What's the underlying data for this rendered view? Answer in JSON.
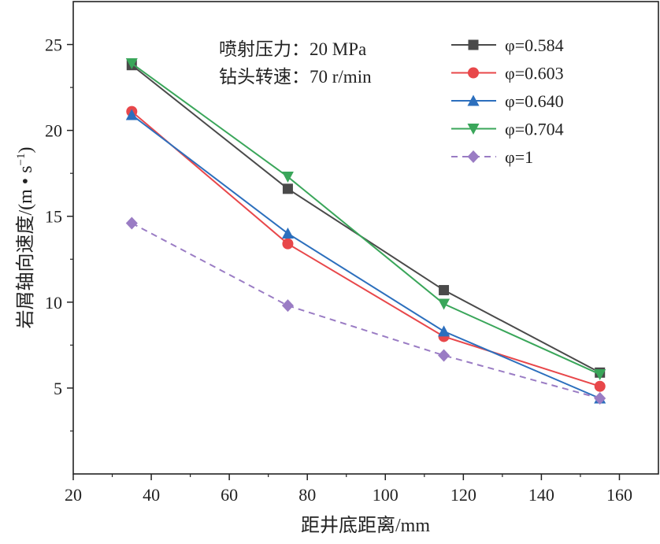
{
  "chart_data": {
    "type": "line",
    "title": "",
    "xlabel": "距井底距离/mm",
    "ylabel": "岩屑轴向速度/(m·s⁻¹)",
    "ylabel_parts": {
      "main": "岩屑轴向速度/(m • s",
      "sup": "−1",
      "close": ")"
    },
    "xlim": [
      20,
      170
    ],
    "ylim": [
      0,
      27.5
    ],
    "x_ticks": [
      20,
      40,
      60,
      80,
      100,
      120,
      140,
      160
    ],
    "y_ticks": [
      5,
      10,
      15,
      20,
      25
    ],
    "x_tick_labels": [
      "20",
      "40",
      "60",
      "80",
      "100",
      "120",
      "140",
      "160"
    ],
    "y_tick_labels": [
      "5",
      "10",
      "15",
      "20",
      "25"
    ],
    "grid": false,
    "legend_position": "top-right",
    "annotations": [
      "喷射压力：20 MPa",
      "钻头转速：70 r/min"
    ],
    "x": [
      35,
      75,
      115,
      155
    ],
    "series": [
      {
        "name": "φ=0.584",
        "values": [
          23.8,
          16.6,
          10.7,
          5.9
        ],
        "color": "#4a4a4a",
        "marker": "square",
        "dash": false
      },
      {
        "name": "φ=0.603",
        "values": [
          21.1,
          13.4,
          8.0,
          5.1
        ],
        "color": "#e8474a",
        "marker": "circle",
        "dash": false
      },
      {
        "name": "φ=0.640",
        "values": [
          20.9,
          14.0,
          8.3,
          4.4
        ],
        "color": "#2c6fbd",
        "marker": "triangle-up",
        "dash": false
      },
      {
        "name": "φ=0.704",
        "values": [
          23.9,
          17.3,
          9.9,
          5.8
        ],
        "color": "#3aa65a",
        "marker": "triangle-down",
        "dash": false
      },
      {
        "name": "φ=1",
        "values": [
          14.6,
          9.8,
          6.9,
          4.4
        ],
        "color": "#9a7cc4",
        "marker": "diamond",
        "dash": true
      }
    ]
  }
}
